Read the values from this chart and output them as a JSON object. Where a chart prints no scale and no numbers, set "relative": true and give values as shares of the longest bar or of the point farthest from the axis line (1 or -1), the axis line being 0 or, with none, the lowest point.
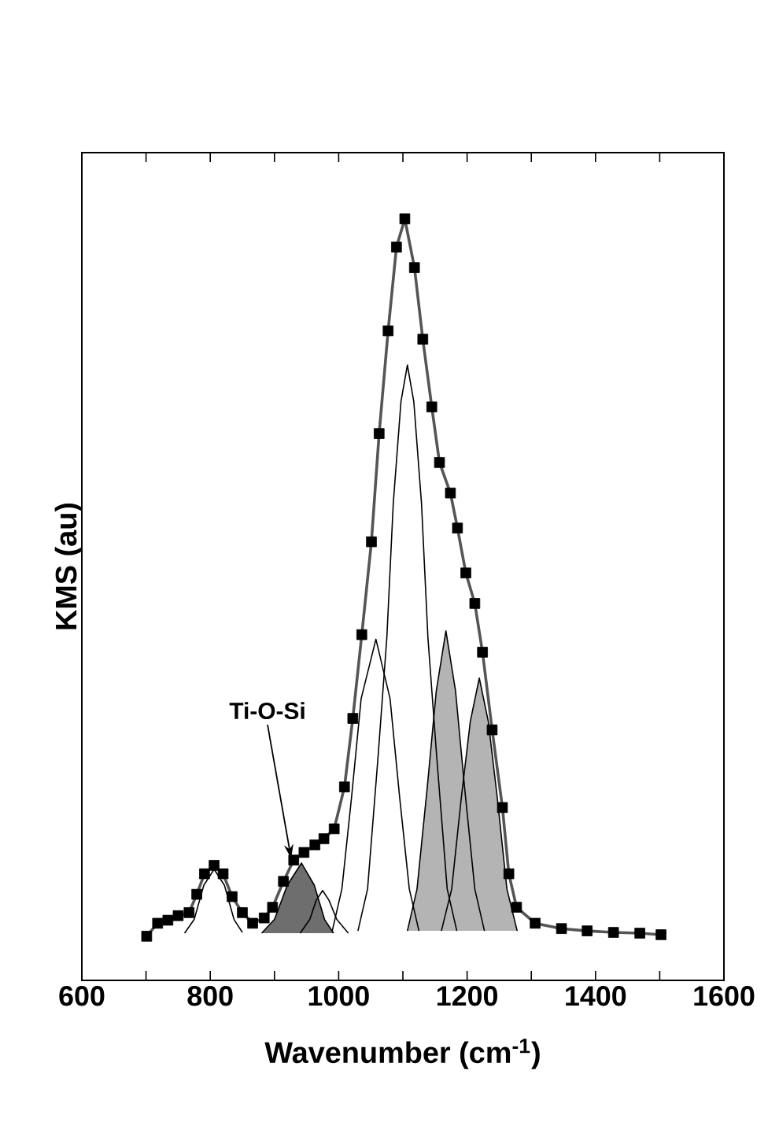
{
  "chart_data": {
    "type": "line",
    "relative": true,
    "xlabel": "Wavenumber (cm$^{-1}$)",
    "ylabel": "KMS (au)",
    "xlim": [
      600,
      1600
    ],
    "xticks": [
      600,
      {
        "value": 700,
        "label": null
      },
      800,
      {
        "value": 900,
        "label": null
      },
      1000,
      {
        "value": 1100,
        "label": null
      },
      1200,
      {
        "value": 1300,
        "label": null
      },
      1400,
      {
        "value": 1500,
        "label": null
      },
      1600
    ],
    "tick_labels": "x",
    "grid": false,
    "annotations": [
      {
        "text": "Ti-O-Si",
        "x": 926,
        "y": 0.16
      }
    ],
    "series": [
      {
        "color": "#000000",
        "x": [
          760,
          775,
          790,
          806,
          822,
          837,
          850
        ],
        "values": [
          0.062,
          0.08,
          0.125,
          0.146,
          0.125,
          0.08,
          0.063
        ]
      },
      {
        "type": "area",
        "color": "#6e6e6e",
        "x": [
          880,
          900,
          920,
          942,
          962,
          978,
          992
        ],
        "values": [
          0.062,
          0.08,
          0.125,
          0.154,
          0.125,
          0.08,
          0.062
        ]
      },
      {
        "color": "#000000",
        "x": [
          940,
          955,
          965,
          975,
          985,
          997,
          1015
        ],
        "values": [
          0.062,
          0.08,
          0.105,
          0.118,
          0.105,
          0.08,
          0.062
        ]
      },
      {
        "color": "#000000",
        "x": [
          990,
          1005,
          1020,
          1035,
          1058,
          1080,
          1095,
          1110,
          1125
        ],
        "values": [
          0.065,
          0.12,
          0.24,
          0.37,
          0.448,
          0.37,
          0.24,
          0.12,
          0.065
        ]
      },
      {
        "color": "#000000",
        "x": [
          1030,
          1045,
          1061,
          1075,
          1085,
          1097,
          1107,
          1117,
          1129,
          1139,
          1153,
          1169,
          1184
        ],
        "values": [
          0.065,
          0.12,
          0.29,
          0.45,
          0.626,
          0.76,
          0.808,
          0.76,
          0.626,
          0.45,
          0.29,
          0.12,
          0.065
        ]
      },
      {
        "type": "area",
        "color": "#b4b4b4",
        "x": [
          1107,
          1122,
          1138,
          1152,
          1167,
          1182,
          1196,
          1212,
          1227
        ],
        "values": [
          0.065,
          0.12,
          0.254,
          0.38,
          0.459,
          0.38,
          0.254,
          0.12,
          0.065
        ]
      },
      {
        "type": "area",
        "color": "#b4b4b4",
        "x": [
          1160,
          1176,
          1191,
          1205,
          1219,
          1233,
          1247,
          1262,
          1278
        ],
        "values": [
          0.065,
          0.12,
          0.24,
          0.34,
          0.397,
          0.34,
          0.24,
          0.12,
          0.065
        ]
      },
      {
        "color": "#555555",
        "x": [
          701,
          718,
          734,
          750,
          767,
          779,
          791,
          806,
          820,
          834,
          850,
          866,
          884,
          897,
          914,
          930,
          946,
          963,
          977,
          993,
          1009,
          1022,
          1036,
          1051,
          1063,
          1077,
          1090,
          1103,
          1118,
          1131,
          1145,
          1157,
          1174,
          1185,
          1198,
          1212,
          1224,
          1239,
          1255,
          1265,
          1277,
          1306,
          1347,
          1387,
          1428,
          1469,
          1502
        ],
        "values": [
          0.058,
          0.075,
          0.079,
          0.085,
          0.089,
          0.113,
          0.14,
          0.151,
          0.14,
          0.11,
          0.089,
          0.075,
          0.082,
          0.096,
          0.13,
          0.158,
          0.168,
          0.178,
          0.186,
          0.199,
          0.254,
          0.344,
          0.454,
          0.576,
          0.718,
          0.853,
          0.963,
          1.0,
          0.936,
          0.842,
          0.753,
          0.68,
          0.64,
          0.594,
          0.535,
          0.495,
          0.431,
          0.329,
          0.227,
          0.14,
          0.096,
          0.075,
          0.068,
          0.065,
          0.063,
          0.062,
          0.06
        ]
      },
      {
        "type": "scatter",
        "marker": "square",
        "color": "#000000",
        "x": [
          701,
          718,
          734,
          750,
          767,
          779,
          791,
          806,
          820,
          834,
          850,
          866,
          884,
          897,
          914,
          930,
          946,
          963,
          977,
          993,
          1009,
          1022,
          1036,
          1051,
          1063,
          1077,
          1090,
          1103,
          1118,
          1131,
          1145,
          1157,
          1174,
          1185,
          1198,
          1212,
          1224,
          1239,
          1255,
          1265,
          1277,
          1306,
          1347,
          1387,
          1428,
          1469,
          1502
        ],
        "values": [
          0.058,
          0.075,
          0.079,
          0.085,
          0.089,
          0.113,
          0.14,
          0.151,
          0.14,
          0.11,
          0.089,
          0.075,
          0.082,
          0.096,
          0.13,
          0.158,
          0.168,
          0.178,
          0.186,
          0.199,
          0.254,
          0.344,
          0.454,
          0.576,
          0.718,
          0.853,
          0.963,
          1.0,
          0.936,
          0.842,
          0.753,
          0.68,
          0.64,
          0.594,
          0.535,
          0.495,
          0.431,
          0.329,
          0.227,
          0.14,
          0.096,
          0.075,
          0.068,
          0.065,
          0.063,
          0.062,
          0.06
        ]
      }
    ]
  }
}
